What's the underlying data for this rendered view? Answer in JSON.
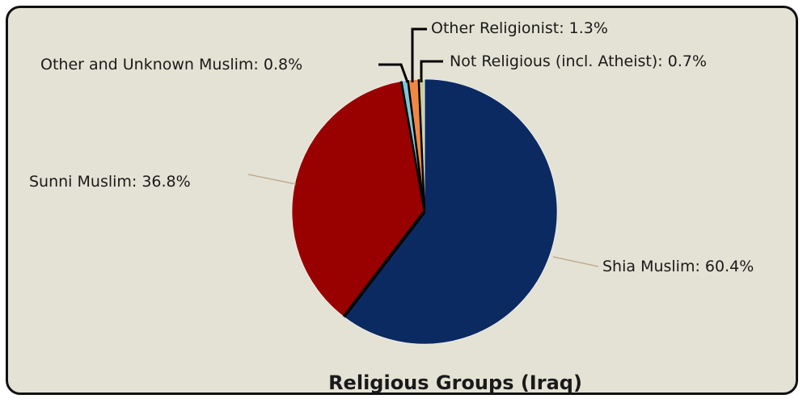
{
  "chart_data": {
    "type": "pie",
    "title": "Religious Groups (Iraq)",
    "start_angle_deg": 0,
    "direction": "clockwise",
    "slices": [
      {
        "label": "Shia Muslim: 60.4%",
        "value": 60.4,
        "color": "#0c2a62"
      },
      {
        "label": "Sunni Muslim: 36.8%",
        "value": 36.8,
        "color": "#990000"
      },
      {
        "label": "Other and Unknown Muslim: 0.8%",
        "value": 0.8,
        "color": "#7fc4d6"
      },
      {
        "label": "Other Religionist: 1.3%",
        "value": 1.3,
        "color": "#ee8844"
      },
      {
        "label": "Not Religious (incl. Atheist): 0.7%",
        "value": 0.7,
        "color": "#c8cfa2"
      }
    ],
    "legend": "none"
  }
}
